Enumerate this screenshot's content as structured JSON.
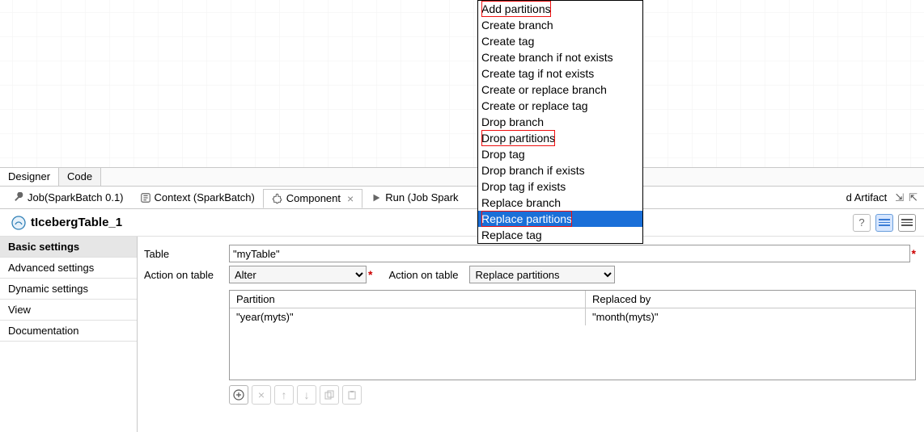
{
  "editor_tabs": {
    "designer": "Designer",
    "code": "Code"
  },
  "view_tabs": {
    "job": "Job(SparkBatch 0.1)",
    "context": "Context (SparkBatch)",
    "component": "Component",
    "run": "Run (Job Spark",
    "cloud": "d Artifact"
  },
  "component": {
    "title": "tIcebergTable_1",
    "icon_color": "#2f7fb6"
  },
  "side_nav": {
    "basic": "Basic settings",
    "advanced": "Advanced settings",
    "dynamic": "Dynamic settings",
    "view": "View",
    "documentation": "Documentation"
  },
  "form": {
    "table_label": "Table",
    "table_value": "\"myTable\"",
    "action1_label": "Action on table",
    "action1_value": "Alter",
    "action2_label": "Action on table",
    "action2_value": "Replace partitions"
  },
  "grid": {
    "col1": "Partition",
    "col2": "Replaced by",
    "row": {
      "c1": "\"year(myts)\"",
      "c2": "\"month(myts)\""
    }
  },
  "popup": {
    "items": [
      "Add partitions",
      "Create branch",
      "Create tag",
      "Create branch if not exists",
      "Create tag if not exists",
      "Create or replace branch",
      "Create or replace tag",
      "Drop branch",
      "Drop partitions",
      "Drop tag",
      "Drop branch if exists",
      "Drop tag if exists",
      "Replace branch",
      "Replace partitions",
      "Replace tag"
    ],
    "selected_index": 13,
    "highlighted_indices": [
      0,
      8,
      13
    ]
  },
  "colors": {
    "selection_bg": "#1a6fd8",
    "annotation_red": "#e11"
  }
}
